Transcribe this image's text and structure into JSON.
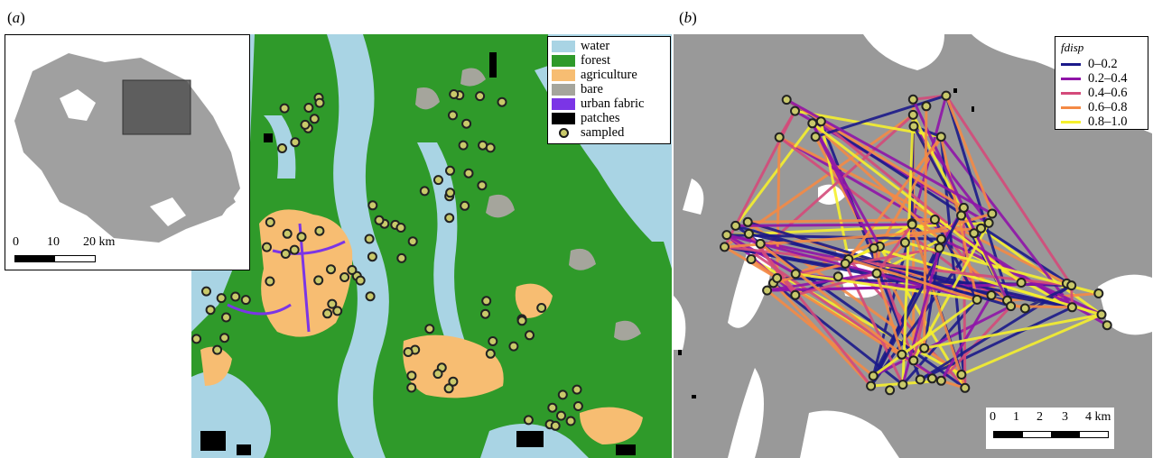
{
  "panel_a": {
    "label_open": "(",
    "label_letter": "a",
    "label_close": ")",
    "legend": [
      {
        "label": "water",
        "color": "#a9d4e4",
        "kind": "box"
      },
      {
        "label": "forest",
        "color": "#2f9a2a",
        "kind": "box"
      },
      {
        "label": "agriculture",
        "color": "#f7bd72",
        "kind": "box"
      },
      {
        "label": "bare",
        "color": "#a5a59c",
        "kind": "box"
      },
      {
        "label": "urban fabric",
        "color": "#7b35e6",
        "kind": "box"
      },
      {
        "label": "patches",
        "color": "#000000",
        "kind": "box"
      },
      {
        "label": "sampled",
        "color": "#c9c96a",
        "kind": "dot"
      }
    ],
    "inset_scale": {
      "ticks": [
        "0",
        "10",
        "20 km"
      ]
    }
  },
  "panel_b": {
    "label_open": "(",
    "label_letter": "b",
    "label_close": ")",
    "legend_title": "fdisp",
    "legend": [
      {
        "label": "0–0.2",
        "color": "#1b1a8a"
      },
      {
        "label": "0.2–0.4",
        "color": "#8f14a8"
      },
      {
        "label": "0.4–0.6",
        "color": "#d44a7a"
      },
      {
        "label": "0.6–0.8",
        "color": "#f48a45"
      },
      {
        "label": "0.8–1.0",
        "color": "#f5f02e"
      }
    ],
    "scale": {
      "ticks": [
        "0",
        "1",
        "2",
        "3",
        "4 km"
      ]
    }
  },
  "colors": {
    "land_gray": "#999999",
    "sample_fill": "#c9c96a",
    "sample_stroke": "#222222"
  }
}
